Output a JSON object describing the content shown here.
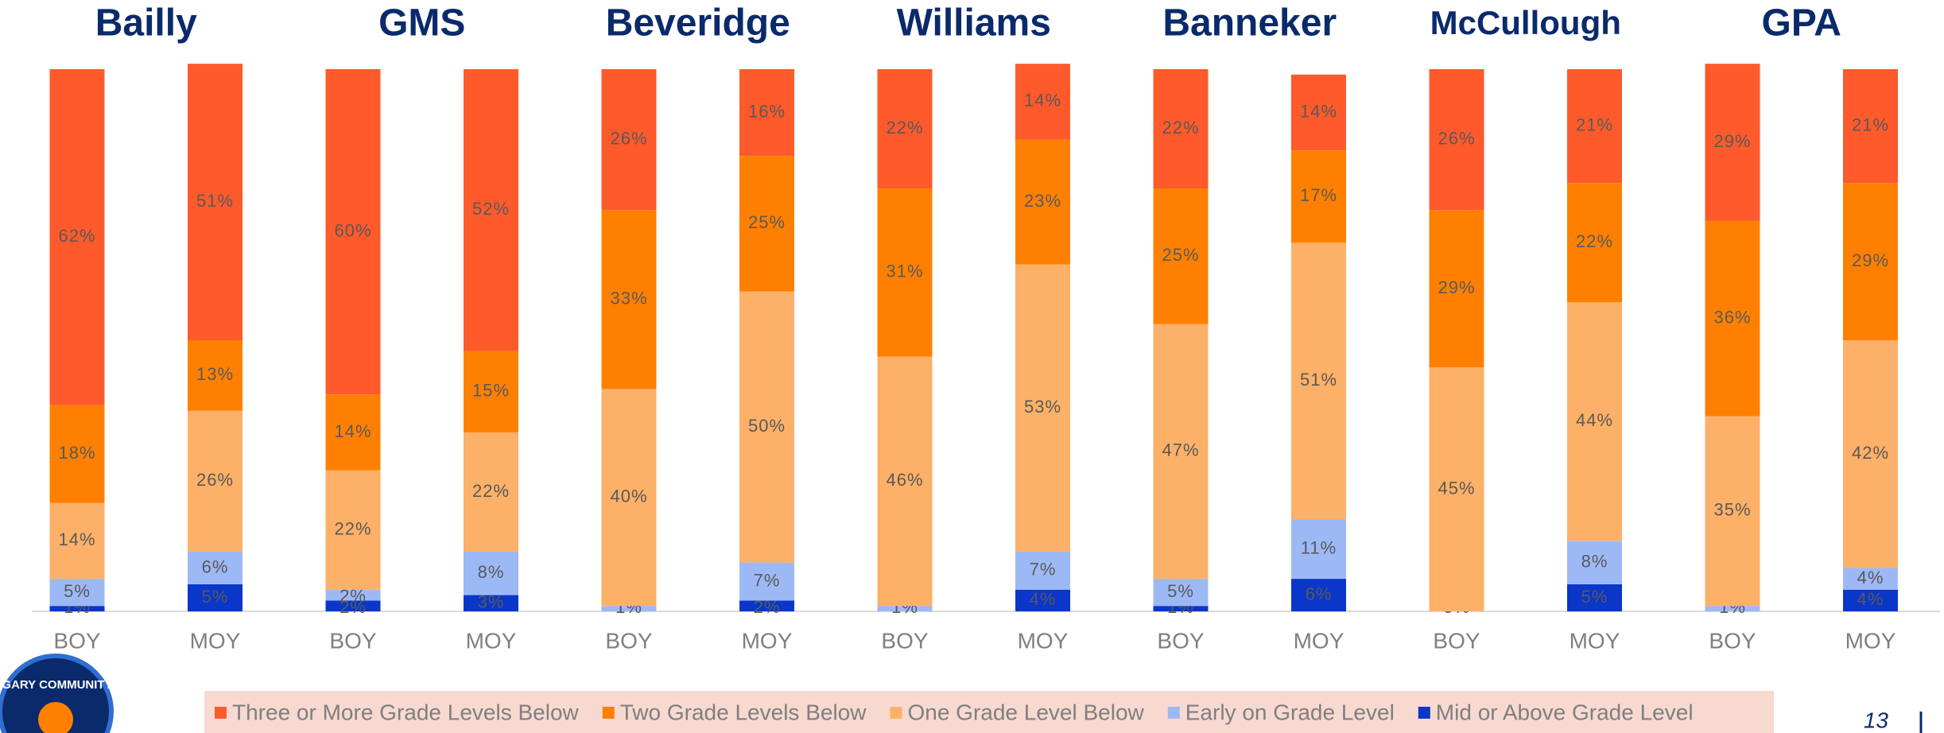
{
  "chart_data": {
    "type": "stacked_bar",
    "group_labels": [
      "Bailly",
      "GMS",
      "Beveridge",
      "Williams",
      "Banneker",
      "McCullough",
      "GPA"
    ],
    "categories": [
      "BOY",
      "MOY",
      "BOY",
      "MOY",
      "BOY",
      "MOY",
      "BOY",
      "MOY",
      "BOY",
      "MOY",
      "BOY",
      "MOY",
      "BOY",
      "MOY"
    ],
    "ylim": [
      0,
      100
    ],
    "series": [
      {
        "name": "Mid or Above Grade Level",
        "color": "#0a36c9",
        "values": [
          1,
          5,
          2,
          3,
          0,
          2,
          0,
          4,
          1,
          6,
          0,
          5,
          0,
          4
        ],
        "value_labels": [
          "1%",
          "5%",
          "2%",
          "3%",
          null,
          "2%",
          null,
          "4%",
          "1%",
          "6%",
          null,
          "5%",
          null,
          "4%"
        ]
      },
      {
        "name": "Early on Grade Level",
        "color": "#9db9f5",
        "values": [
          5,
          6,
          2,
          8,
          1,
          7,
          1,
          7,
          5,
          11,
          0,
          8,
          1,
          4
        ],
        "value_labels": [
          "5%",
          "6%",
          "2%",
          "8%",
          "1%",
          "7%",
          "1%",
          "7%",
          "5%",
          "11%",
          "0%",
          "8%",
          "1%",
          "4%"
        ]
      },
      {
        "name": "One Grade Level Below",
        "color": "#fdb068",
        "values": [
          14,
          26,
          22,
          22,
          40,
          50,
          46,
          53,
          47,
          51,
          45,
          44,
          35,
          42
        ],
        "value_labels": [
          "14%",
          "26%",
          "22%",
          "22%",
          "40%",
          "50%",
          "46%",
          "53%",
          "47%",
          "51%",
          "45%",
          "44%",
          "35%",
          "42%"
        ]
      },
      {
        "name": "Two Grade Levels Below",
        "color": "#ff8000",
        "values": [
          18,
          13,
          14,
          15,
          33,
          25,
          31,
          23,
          25,
          17,
          29,
          22,
          36,
          29
        ],
        "value_labels": [
          "18%",
          "13%",
          "14%",
          "15%",
          "33%",
          "25%",
          "31%",
          "23%",
          "25%",
          "17%",
          "29%",
          "22%",
          "36%",
          "29%"
        ]
      },
      {
        "name": "Three or More Grade Levels Below",
        "color": "#ff5a2b",
        "values": [
          62,
          51,
          60,
          52,
          26,
          16,
          22,
          14,
          22,
          14,
          26,
          21,
          29,
          21
        ],
        "value_labels": [
          "62%",
          "51%",
          "60%",
          "52%",
          "26%",
          "16%",
          "22%",
          "14%",
          "22%",
          "14%",
          "26%",
          "21%",
          "29%",
          "21%"
        ]
      }
    ],
    "legend_order": [
      4,
      3,
      2,
      1,
      0
    ]
  },
  "footer": {
    "page_number": "13",
    "logo_text": "GARY COMMUNITY"
  }
}
